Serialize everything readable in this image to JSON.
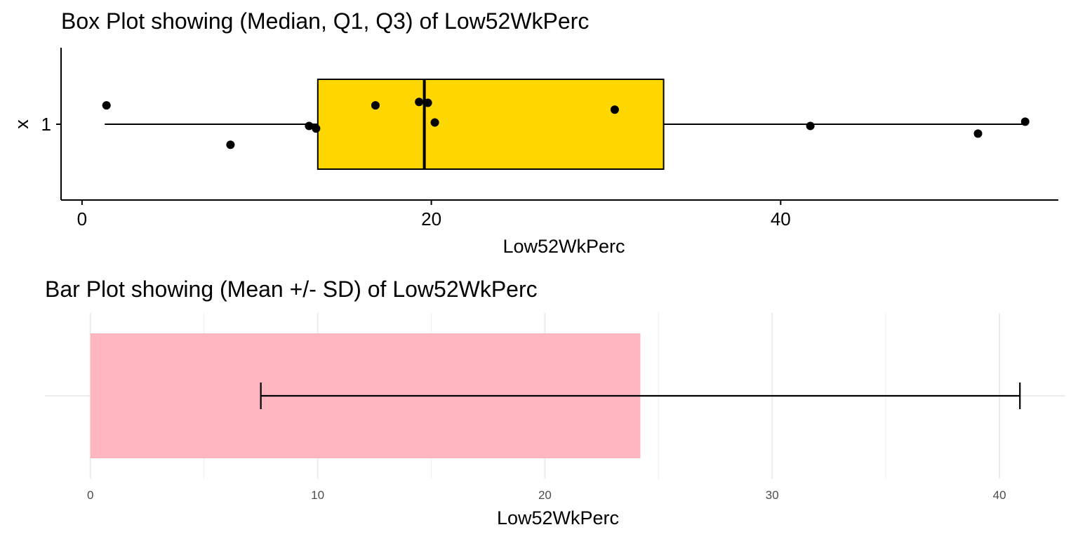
{
  "chart_data": [
    {
      "type": "box",
      "title": "Box Plot showing (Median, Q1, Q3) of Low52WkPerc",
      "xlabel": "Low52WkPerc",
      "ylabel": "x",
      "y_category": "1",
      "xlim": [
        -1.2,
        55.9
      ],
      "x_ticks": [
        "0",
        "20",
        "40"
      ],
      "x_tick_values": [
        0,
        20,
        40
      ],
      "box": {
        "min": 1.3,
        "q1": 13.5,
        "median": 19.6,
        "q3": 33.3,
        "max": 54.0
      },
      "points": [
        {
          "x": 1.4,
          "jitter": 0.22
        },
        {
          "x": 8.5,
          "jitter": -0.24
        },
        {
          "x": 13.0,
          "jitter": -0.02
        },
        {
          "x": 13.4,
          "jitter": -0.05
        },
        {
          "x": 16.8,
          "jitter": 0.22
        },
        {
          "x": 19.3,
          "jitter": 0.26
        },
        {
          "x": 19.8,
          "jitter": 0.25
        },
        {
          "x": 20.2,
          "jitter": 0.02
        },
        {
          "x": 30.5,
          "jitter": 0.17
        },
        {
          "x": 41.7,
          "jitter": -0.02
        },
        {
          "x": 51.3,
          "jitter": -0.11
        },
        {
          "x": 54.0,
          "jitter": 0.03
        }
      ],
      "box_fill": "#FFD700",
      "grid": false
    },
    {
      "type": "bar",
      "title": "Bar Plot showing (Mean +/- SD) of Low52WkPerc",
      "xlabel": "Low52WkPerc",
      "xlim": [
        -2.0,
        42.9
      ],
      "x_ticks": [
        "0",
        "10",
        "20",
        "30",
        "40"
      ],
      "x_tick_values": [
        0,
        10,
        20,
        30,
        40
      ],
      "minor_ticks": [
        5,
        15,
        25,
        35
      ],
      "mean": 24.2,
      "error_low": 7.5,
      "error_high": 40.9,
      "bar_fill": "#FFB6C1",
      "grid": true
    }
  ]
}
